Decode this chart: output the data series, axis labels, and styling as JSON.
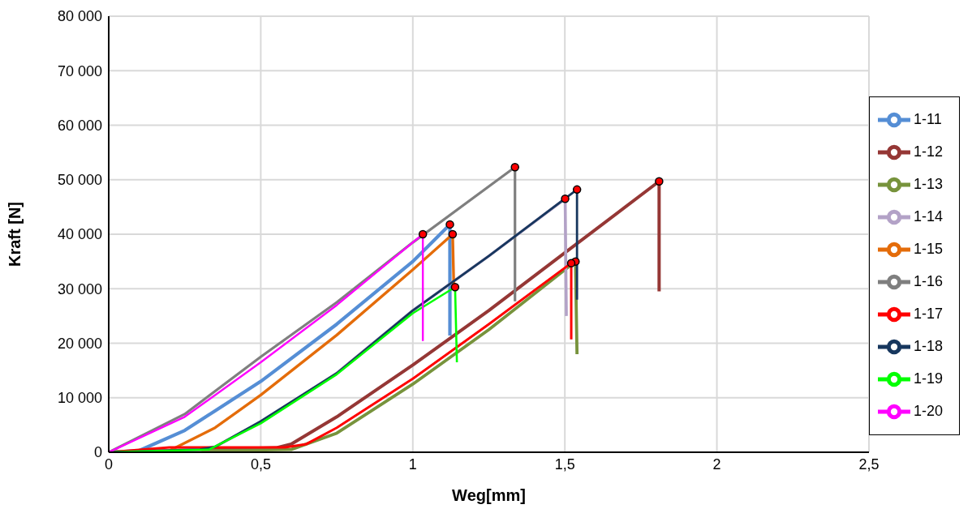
{
  "chart_data": {
    "type": "line",
    "xlabel": "Weg[mm]",
    "ylabel": "Kraft [N]",
    "xlim": [
      0,
      2.5
    ],
    "xticks": [
      0,
      {
        "value": 0.5,
        "label": "0,5"
      },
      1,
      {
        "value": 1.5,
        "label": "1,5"
      },
      2,
      {
        "value": 2.5,
        "label": "2,5"
      }
    ],
    "ylim": [
      0,
      80000
    ],
    "yticks": [
      0,
      {
        "value": 10000,
        "label": "10 000"
      },
      {
        "value": 20000,
        "label": "20 000"
      },
      {
        "value": 30000,
        "label": "30 000"
      },
      {
        "value": 40000,
        "label": "40 000"
      },
      {
        "value": 50000,
        "label": "50 000"
      },
      {
        "value": 60000,
        "label": "60 000"
      },
      {
        "value": 70000,
        "label": "70 000"
      },
      {
        "value": 80000,
        "label": "80 000"
      }
    ],
    "grid": true,
    "legend": "right",
    "marker": "none",
    "line_style": "solid",
    "series": [
      {
        "name": "1-11",
        "color": "#558ed5",
        "x": [
          0,
          0.1,
          0.25,
          0.5,
          0.75,
          1,
          1.122,
          1.122
        ],
        "values": [
          0,
          300,
          4000,
          13000,
          23500,
          35000,
          41800,
          21400
        ]
      },
      {
        "name": "1-12",
        "color": "#953735",
        "x": [
          0,
          0.55,
          0.6,
          0.75,
          1,
          1.25,
          1.5,
          1.81,
          1.81
        ],
        "values": [
          0,
          800,
          1500,
          6500,
          16000,
          26000,
          36600,
          49700,
          29500
        ]
      },
      {
        "name": "1-13",
        "color": "#77933c",
        "x": [
          0,
          0.6,
          0.75,
          1,
          1.25,
          1.535,
          1.54
        ],
        "values": [
          0,
          500,
          3500,
          12500,
          22500,
          35000,
          18000
        ]
      },
      {
        "name": "1-14",
        "color": "#b3a2c7",
        "x": [
          0,
          0.3,
          0.35,
          0.5,
          0.75,
          1,
          1.25,
          1.501,
          1.505
        ],
        "values": [
          0,
          500,
          1000,
          5500,
          14500,
          26000,
          36000,
          46500,
          25000
        ]
      },
      {
        "name": "1-15",
        "color": "#e46c0a",
        "x": [
          0,
          0.2,
          0.35,
          0.5,
          0.75,
          1,
          1.131,
          1.135
        ],
        "values": [
          0,
          300,
          4500,
          10500,
          21500,
          33500,
          40000,
          30000
        ]
      },
      {
        "name": "1-16",
        "color": "#7f7f7f",
        "x": [
          0,
          0.25,
          0.5,
          0.75,
          1,
          1.336,
          1.336
        ],
        "values": [
          0,
          7000,
          17500,
          27500,
          38500,
          52300,
          27700
        ]
      },
      {
        "name": "1-17",
        "color": "#ff0000",
        "x": [
          0,
          0.2,
          0.58,
          0.65,
          0.75,
          1,
          1.25,
          1.521,
          1.521
        ],
        "values": [
          0,
          900,
          900,
          1500,
          4500,
          13500,
          23500,
          34700,
          20700
        ]
      },
      {
        "name": "1-18",
        "color": "#17375e",
        "x": [
          0,
          0.3,
          0.35,
          0.5,
          0.75,
          1,
          1.25,
          1.54,
          1.54
        ],
        "values": [
          0,
          500,
          1000,
          5700,
          14500,
          26000,
          36000,
          48200,
          28000
        ]
      },
      {
        "name": "1-19",
        "color": "#00ff00",
        "x": [
          0,
          0.33,
          0.5,
          0.75,
          1,
          1.139,
          1.145
        ],
        "values": [
          0,
          500,
          5300,
          14300,
          25500,
          30300,
          16500
        ]
      },
      {
        "name": "1-20",
        "color": "#ff00ff",
        "x": [
          0,
          0.25,
          0.5,
          0.75,
          1,
          1.033,
          1.033
        ],
        "values": [
          0,
          6500,
          16500,
          27000,
          38500,
          40000,
          20400
        ]
      },
      {
        "type": "scatter",
        "color": "#ff0000",
        "marker": "circle",
        "x": [
          1.122,
          1.81,
          1.535,
          1.501,
          1.131,
          1.336,
          1.521,
          1.54,
          1.139,
          1.033
        ],
        "values": [
          41800,
          49700,
          35000,
          46500,
          40000,
          52300,
          34700,
          48200,
          30300,
          40000
        ]
      }
    ]
  }
}
